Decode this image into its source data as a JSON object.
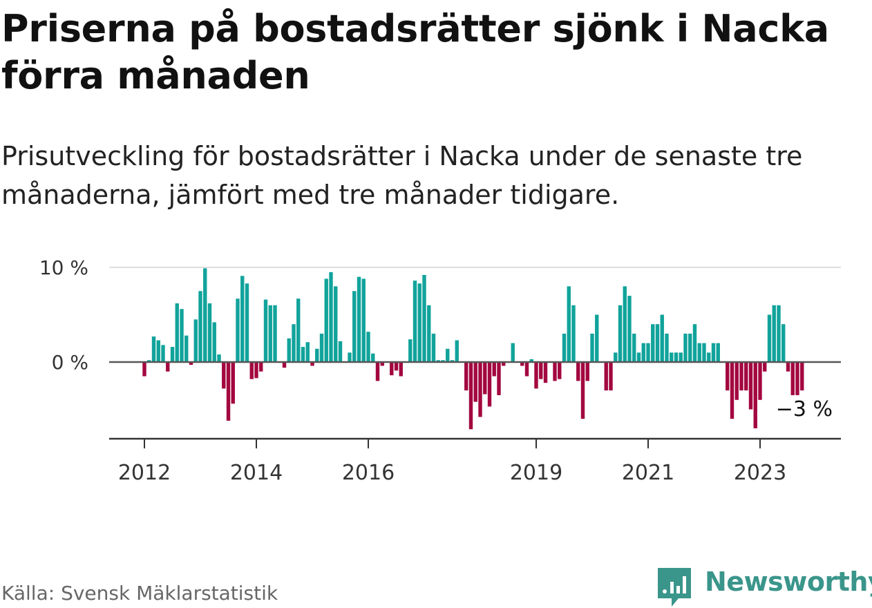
{
  "title": "Priserna på bostadsrätter sjönk i Nacka förra månaden",
  "subtitle": "Prisutveckling för bostadsrätter i Nacka under de senaste tre månaderna, jämfört med tre månader tidigare.",
  "source": "Källa: Svensk Mäklarstatistik",
  "brand": {
    "name": "Newsworthy",
    "icon": "newsworthy-logo-icon"
  },
  "colors": {
    "positive": "#11a39b",
    "negative": "#a3073f",
    "grid": "#dddddd",
    "axis": "#333333"
  },
  "chart_data": {
    "type": "bar",
    "title": "Priserna på bostadsrätter sjönk i Nacka förra månaden",
    "xlabel": "",
    "ylabel": "",
    "ylim": [
      -8,
      10
    ],
    "y_ticks": [
      {
        "value": 0,
        "label": "0 %"
      },
      {
        "value": 10,
        "label": "10 %"
      }
    ],
    "x_ticks": [
      "2012",
      "2014",
      "2016",
      "2019",
      "2021",
      "2023"
    ],
    "x_tick_months": [
      0,
      24,
      48,
      84,
      108,
      132
    ],
    "start": "2012-01",
    "last_label": "−3 %",
    "values": [
      -1.5,
      0.2,
      2.7,
      2.3,
      1.8,
      -1.0,
      1.6,
      6.2,
      5.6,
      2.8,
      -0.3,
      4.5,
      7.5,
      9.9,
      6.2,
      4.2,
      0.8,
      -2.8,
      -6.2,
      -4.4,
      6.7,
      9.1,
      8.3,
      -1.8,
      -1.7,
      -1.0,
      6.6,
      6.0,
      6.0,
      0.0,
      -0.6,
      2.5,
      4.0,
      6.7,
      1.6,
      2.1,
      -0.4,
      1.4,
      3.0,
      8.8,
      9.5,
      8.0,
      2.2,
      0.0,
      1.0,
      7.5,
      9.0,
      8.8,
      3.2,
      0.9,
      -2.0,
      -0.4,
      0.0,
      -1.4,
      -0.9,
      -1.5,
      0.0,
      2.4,
      8.6,
      8.3,
      9.2,
      6.0,
      3.0,
      0.2,
      0.2,
      1.4,
      0.2,
      2.3,
      0.0,
      -3.0,
      -7.1,
      -4.2,
      -5.8,
      -3.4,
      -4.7,
      -1.5,
      -3.5,
      -0.4,
      0.0,
      2.0,
      0.0,
      -0.4,
      -1.5,
      0.3,
      -2.8,
      -1.8,
      -2.2,
      0.0,
      -2.0,
      -1.8,
      3.0,
      8.0,
      6.0,
      -2.0,
      -6.0,
      -2.0,
      3.0,
      5.0,
      0.0,
      -3.0,
      -3.0,
      1.0,
      6.0,
      8.0,
      7.0,
      3.0,
      1.0,
      2.0,
      2.0,
      4.0,
      4.0,
      5.0,
      3.0,
      1.0,
      1.0,
      1.0,
      3.0,
      3.0,
      4.0,
      2.0,
      2.0,
      1.0,
      2.0,
      2.0,
      0.0,
      -3.0,
      -6.0,
      -4.0,
      -3.0,
      -3.0,
      -5.0,
      -7.0,
      -4.0,
      -1.0,
      5.0,
      6.0,
      6.0,
      4.0,
      -1.0,
      -3.5,
      -3.5,
      -3.0
    ]
  }
}
